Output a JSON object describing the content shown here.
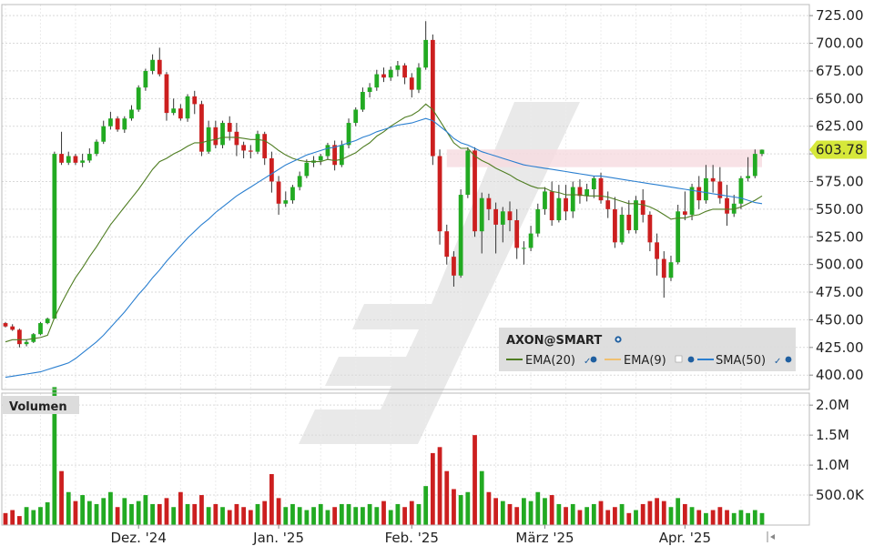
{
  "colors": {
    "up": "#22aa22",
    "down": "#cc1f1f",
    "ema20": "#4f7d22",
    "ema9": "#f0c070",
    "sma50": "#2a7fd0",
    "grid": "#d9d9d9",
    "price_label_bg": "#d6e83a",
    "resistance_band": "#f6dbe0"
  },
  "legend": {
    "symbol": "AXON@SMART",
    "items": [
      {
        "label": "EMA(20)",
        "color": "#4f7d22"
      },
      {
        "label": "EMA(9)",
        "color": "#f0c070"
      },
      {
        "label": "SMA(50)",
        "color": "#2a7fd0"
      }
    ]
  },
  "last_price_label": "603.78",
  "volume_title": "Volumen",
  "chart_data": [
    {
      "type": "candlestick",
      "title": "",
      "symbol": "AXON@SMART",
      "xlabel": "",
      "ylabel": "",
      "ylim": [
        387,
        735
      ],
      "y_ticks": [
        "725.00",
        "700.00",
        "675.00",
        "650.00",
        "625.00",
        "600.00",
        "575.00",
        "550.00",
        "525.00",
        "500.00",
        "475.00",
        "450.00",
        "425.00",
        "400.00"
      ],
      "x_ticks": [
        "Dez. '24",
        "Jan. '25",
        "Feb. '25",
        "März '25",
        "Apr. '25"
      ],
      "x_tick_index": [
        19,
        39,
        58,
        77,
        97
      ],
      "grid": true,
      "legend_position": "bottom-right",
      "resistance_band": [
        588,
        604
      ],
      "last_price": 603.78,
      "candles": [
        [
          447,
          444,
          448,
          443
        ],
        [
          444,
          441,
          446,
          440
        ],
        [
          441,
          428,
          442,
          425
        ],
        [
          428,
          430,
          432,
          426
        ],
        [
          430,
          437,
          438,
          429
        ],
        [
          437,
          447,
          448,
          436
        ],
        [
          447,
          451,
          452,
          446
        ],
        [
          451,
          600,
          602,
          513
        ],
        [
          600,
          592,
          620,
          590
        ],
        [
          592,
          598,
          602,
          590
        ],
        [
          598,
          592,
          600,
          590
        ],
        [
          592,
          594,
          600,
          588
        ],
        [
          594,
          600,
          605,
          592
        ],
        [
          600,
          611,
          613,
          598
        ],
        [
          611,
          625,
          630,
          609
        ],
        [
          625,
          632,
          638,
          622
        ],
        [
          632,
          622,
          634,
          620
        ],
        [
          622,
          632,
          634,
          619
        ],
        [
          632,
          640,
          644,
          630
        ],
        [
          640,
          660,
          662,
          638
        ],
        [
          660,
          675,
          677,
          657
        ],
        [
          675,
          685,
          690,
          672
        ],
        [
          685,
          672,
          696,
          670
        ],
        [
          672,
          637,
          674,
          630
        ],
        [
          637,
          641,
          650,
          635
        ],
        [
          641,
          632,
          645,
          630
        ],
        [
          632,
          652,
          654,
          629
        ],
        [
          652,
          645,
          657,
          636
        ],
        [
          645,
          602,
          648,
          598
        ],
        [
          602,
          624,
          630,
          600
        ],
        [
          624,
          608,
          630,
          605
        ],
        [
          608,
          628,
          630,
          605
        ],
        [
          628,
          620,
          634,
          612
        ],
        [
          620,
          608,
          628,
          598
        ],
        [
          608,
          603,
          611,
          596
        ],
        [
          603,
          602,
          608,
          596
        ],
        [
          602,
          618,
          621,
          600
        ],
        [
          618,
          596,
          620,
          590
        ],
        [
          596,
          575,
          602,
          565
        ],
        [
          575,
          555,
          580,
          545
        ],
        [
          555,
          558,
          566,
          552
        ],
        [
          558,
          570,
          572,
          555
        ],
        [
          570,
          580,
          584,
          567
        ],
        [
          580,
          592,
          595,
          578
        ],
        [
          592,
          594,
          598,
          588
        ],
        [
          594,
          598,
          600,
          590
        ],
        [
          598,
          608,
          610,
          595
        ],
        [
          608,
          590,
          612,
          585
        ],
        [
          590,
          608,
          612,
          588
        ],
        [
          608,
          628,
          632,
          605
        ],
        [
          628,
          640,
          642,
          625
        ],
        [
          640,
          656,
          660,
          638
        ],
        [
          656,
          660,
          664,
          651
        ],
        [
          660,
          672,
          676,
          657
        ],
        [
          672,
          669,
          678,
          665
        ],
        [
          669,
          676,
          679,
          666
        ],
        [
          676,
          680,
          684,
          670
        ],
        [
          680,
          669,
          682,
          663
        ],
        [
          669,
          658,
          673,
          651
        ],
        [
          658,
          678,
          682,
          655
        ],
        [
          678,
          703,
          720,
          676
        ],
        [
          703,
          598,
          708,
          590
        ],
        [
          598,
          530,
          604,
          518
        ],
        [
          530,
          507,
          536,
          500
        ],
        [
          507,
          490,
          512,
          480
        ],
        [
          490,
          563,
          568,
          488
        ],
        [
          563,
          603,
          606,
          560
        ],
        [
          603,
          530,
          606,
          525
        ],
        [
          530,
          560,
          565,
          510
        ],
        [
          560,
          550,
          564,
          540
        ],
        [
          550,
          536,
          556,
          510
        ],
        [
          536,
          548,
          552,
          520
        ],
        [
          548,
          540,
          557,
          530
        ],
        [
          540,
          515,
          550,
          505
        ],
        [
          515,
          515,
          521,
          500
        ],
        [
          515,
          528,
          535,
          512
        ],
        [
          528,
          550,
          555,
          525
        ],
        [
          550,
          566,
          570,
          545
        ],
        [
          566,
          540,
          575,
          535
        ],
        [
          540,
          560,
          572,
          538
        ],
        [
          560,
          548,
          572,
          540
        ],
        [
          548,
          570,
          575,
          542
        ],
        [
          570,
          562,
          577,
          555
        ],
        [
          562,
          568,
          573,
          557
        ],
        [
          568,
          578,
          580,
          560
        ],
        [
          578,
          558,
          583,
          555
        ],
        [
          558,
          550,
          566,
          542
        ],
        [
          550,
          520,
          561,
          515
        ],
        [
          520,
          545,
          552,
          518
        ],
        [
          545,
          531,
          558,
          528
        ],
        [
          531,
          558,
          562,
          528
        ],
        [
          558,
          545,
          568,
          538
        ],
        [
          545,
          520,
          548,
          512
        ],
        [
          520,
          505,
          528,
          490
        ],
        [
          505,
          488,
          512,
          470
        ],
        [
          488,
          502,
          508,
          485
        ],
        [
          502,
          548,
          554,
          500
        ],
        [
          548,
          545,
          566,
          540
        ],
        [
          545,
          570,
          573,
          540
        ],
        [
          570,
          558,
          580,
          550
        ],
        [
          558,
          578,
          590,
          555
        ],
        [
          578,
          575,
          590,
          565
        ],
        [
          575,
          560,
          588,
          555
        ],
        [
          560,
          546,
          572,
          535
        ],
        [
          546,
          555,
          563,
          543
        ],
        [
          555,
          578,
          580,
          550
        ],
        [
          578,
          580,
          597,
          575
        ],
        [
          580,
          600,
          604,
          578
        ],
        [
          600,
          603.78,
          604,
          598
        ]
      ],
      "volume": {
        "ylim": [
          0,
          2.2
        ],
        "unit": "M",
        "y_ticks": [
          "2.0M",
          "1.5M",
          "1.0M",
          "500.0K"
        ],
        "values": [
          0.2,
          0.25,
          0.15,
          0.3,
          0.25,
          0.3,
          0.38,
          2.3,
          0.9,
          0.55,
          0.4,
          0.5,
          0.4,
          0.35,
          0.45,
          0.55,
          0.3,
          0.45,
          0.35,
          0.4,
          0.5,
          0.35,
          0.35,
          0.45,
          0.3,
          0.55,
          0.35,
          0.35,
          0.5,
          0.3,
          0.35,
          0.3,
          0.25,
          0.35,
          0.3,
          0.25,
          0.35,
          0.4,
          0.85,
          0.45,
          0.3,
          0.35,
          0.3,
          0.25,
          0.3,
          0.35,
          0.25,
          0.3,
          0.35,
          0.35,
          0.3,
          0.3,
          0.35,
          0.3,
          0.4,
          0.25,
          0.35,
          0.3,
          0.4,
          0.35,
          0.65,
          1.2,
          1.3,
          0.9,
          0.6,
          0.5,
          0.55,
          1.5,
          0.9,
          0.55,
          0.45,
          0.4,
          0.35,
          0.3,
          0.45,
          0.4,
          0.55,
          0.45,
          0.5,
          0.35,
          0.3,
          0.35,
          0.25,
          0.3,
          0.35,
          0.4,
          0.25,
          0.3,
          0.35,
          0.2,
          0.25,
          0.35,
          0.4,
          0.45,
          0.4,
          0.3,
          0.45,
          0.35,
          0.3,
          0.25,
          0.2,
          0.25,
          0.3,
          0.25,
          0.2,
          0.25,
          0.2,
          0.25,
          0.2
        ]
      },
      "series": [
        {
          "name": "EMA(20)",
          "values": [
            430,
            432,
            432,
            432,
            433,
            434,
            436,
            452,
            465,
            477,
            488,
            497,
            507,
            516,
            526,
            536,
            544,
            552,
            560,
            568,
            577,
            586,
            593,
            596,
            600,
            603,
            607,
            610,
            610,
            612,
            613,
            615,
            615,
            615,
            614,
            613,
            613,
            612,
            608,
            603,
            599,
            596,
            594,
            593,
            593,
            593,
            595,
            594,
            595,
            598,
            601,
            606,
            610,
            616,
            620,
            625,
            629,
            633,
            635,
            639,
            645,
            640,
            630,
            620,
            610,
            605,
            605,
            598,
            594,
            591,
            587,
            584,
            581,
            577,
            574,
            571,
            569,
            569,
            566,
            565,
            563,
            563,
            563,
            562,
            562,
            562,
            561,
            559,
            557,
            555,
            555,
            554,
            552,
            549,
            545,
            541,
            542,
            542,
            544,
            545,
            548,
            550,
            550,
            550,
            550,
            552,
            555,
            558,
            562
          ]
        },
        {
          "name": "SMA(50)",
          "values": [
            398,
            399,
            400,
            401,
            402,
            403,
            405,
            407,
            409,
            411,
            415,
            420,
            425,
            430,
            436,
            443,
            450,
            457,
            465,
            473,
            480,
            488,
            495,
            503,
            510,
            517,
            524,
            530,
            536,
            541,
            547,
            552,
            557,
            562,
            566,
            570,
            574,
            578,
            582,
            586,
            590,
            593,
            596,
            599,
            601,
            603,
            605,
            606,
            608,
            610,
            612,
            615,
            617,
            620,
            622,
            624,
            626,
            627,
            628,
            630,
            632,
            630,
            625,
            620,
            614,
            610,
            608,
            605,
            602,
            600,
            598,
            596,
            594,
            592,
            590,
            589,
            588,
            587,
            586,
            585,
            584,
            583,
            582,
            581,
            580,
            580,
            579,
            578,
            577,
            576,
            575,
            574,
            573,
            572,
            571,
            570,
            569,
            568,
            567,
            566,
            565,
            564,
            563,
            562,
            561,
            560,
            558,
            556,
            555
          ]
        }
      ]
    }
  ]
}
